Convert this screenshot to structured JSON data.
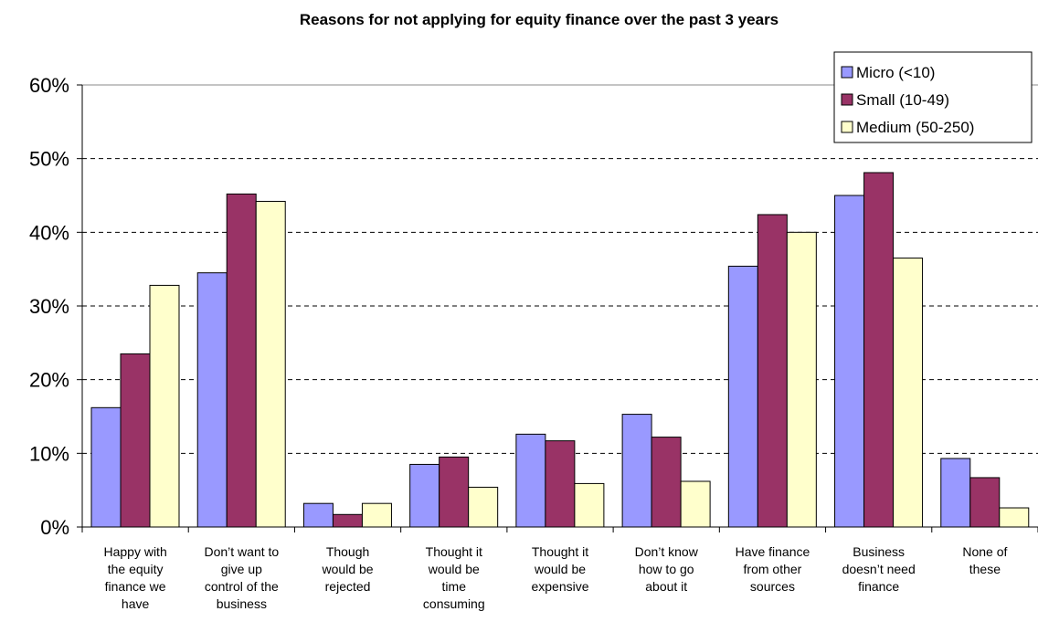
{
  "chart_data": {
    "type": "bar",
    "title": "Reasons for not applying for equity finance over the past 3 years",
    "xlabel": "",
    "ylabel": "",
    "ylim": [
      0,
      0.6
    ],
    "yticks": [
      "0%",
      "10%",
      "20%",
      "30%",
      "40%",
      "50%",
      "60%"
    ],
    "grid": true,
    "legend_position": "top-right",
    "categories": [
      [
        "Happy with",
        "the equity",
        "finance we",
        "have"
      ],
      [
        "Don’t want to",
        "give up",
        "control of the",
        "business"
      ],
      [
        "Though",
        "would be",
        "rejected"
      ],
      [
        "Thought it",
        "would be",
        "time",
        "consuming"
      ],
      [
        "Thought it",
        "would be",
        "expensive"
      ],
      [
        "Don’t know",
        "how to go",
        "about it"
      ],
      [
        "Have finance",
        "from other",
        "sources"
      ],
      [
        "Business",
        "doesn’t need",
        "finance"
      ],
      [
        "None of",
        "these"
      ]
    ],
    "series": [
      {
        "name": "Micro (<10)",
        "color": "#9999ff",
        "values": [
          0.162,
          0.345,
          0.032,
          0.085,
          0.126,
          0.153,
          0.354,
          0.45,
          0.093
        ]
      },
      {
        "name": "Small (10-49)",
        "color": "#993366",
        "values": [
          0.235,
          0.452,
          0.017,
          0.095,
          0.117,
          0.122,
          0.424,
          0.481,
          0.067
        ]
      },
      {
        "name": "Medium (50-250)",
        "color": "#ffffcc",
        "values": [
          0.328,
          0.442,
          0.032,
          0.054,
          0.059,
          0.062,
          0.4,
          0.365,
          0.026
        ]
      }
    ]
  }
}
